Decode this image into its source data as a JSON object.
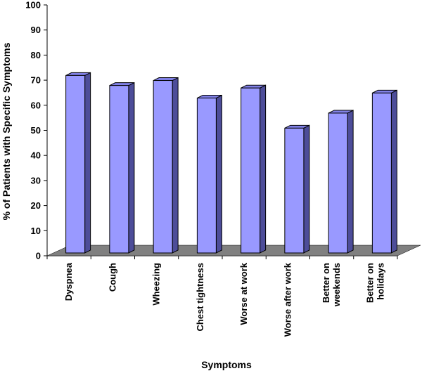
{
  "chart_data": {
    "type": "bar",
    "style": "3d",
    "xlabel": "Symptoms",
    "ylabel": "% of Patients with Specific Symptoms",
    "ylim": [
      0,
      100
    ],
    "yticks": [
      0,
      10,
      20,
      30,
      40,
      50,
      60,
      70,
      80,
      90,
      100
    ],
    "grid": false,
    "legend": "none",
    "categories": [
      [
        "Dyspnea"
      ],
      [
        "Cough"
      ],
      [
        "Wheezing"
      ],
      [
        "Chest tightness"
      ],
      [
        "Worse at work"
      ],
      [
        "Worse after work"
      ],
      [
        "Better on",
        "weekends"
      ],
      [
        "Better on",
        "holidays"
      ]
    ],
    "values": [
      73,
      69,
      71,
      64,
      68,
      52,
      58,
      66
    ],
    "colors": {
      "bar_front": "#9999ff",
      "bar_side": "#4d4d99",
      "bar_top": "#8080e6",
      "floor": "#808080",
      "outline": "#000000"
    }
  }
}
